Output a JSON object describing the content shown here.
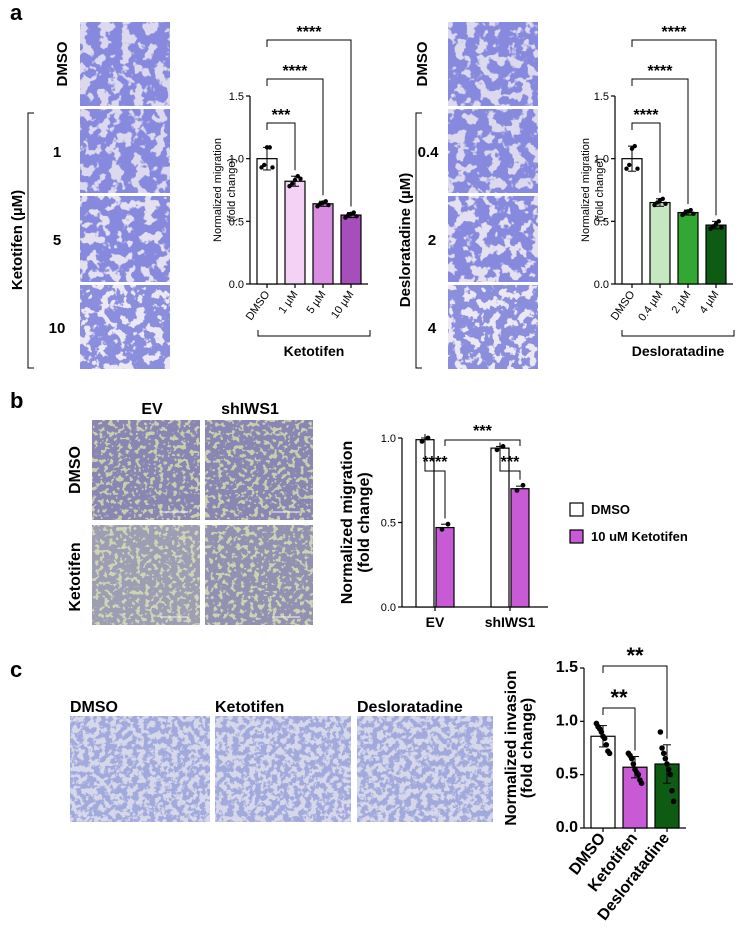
{
  "panels": {
    "a": {
      "label": "a",
      "left": {
        "row_labels": [
          "DMSO",
          "1",
          "5",
          "10"
        ],
        "group_label": "Ketotifen (µM)",
        "image_color": "#4a4fc0"
      },
      "right": {
        "row_labels": [
          "DMSO",
          "0.4",
          "2",
          "4"
        ],
        "group_label": "Desloratadine (µM)",
        "image_color": "#4a4fc0"
      }
    },
    "b": {
      "label": "b",
      "col_labels": [
        "EV",
        "shIWS1"
      ],
      "row_labels": [
        "DMSO",
        "Ketotifen"
      ],
      "legend": [
        {
          "label": "DMSO",
          "color": "#ffffff"
        },
        {
          "label": "10 uM Ketotifen",
          "color": "#c85ad6"
        }
      ]
    },
    "c": {
      "label": "c",
      "image_labels": [
        "DMSO",
        "Ketotifen",
        "Desloratadine"
      ]
    }
  },
  "chart_data": [
    {
      "id": "a-ketotifen",
      "type": "bar",
      "categories": [
        "DMSO",
        "1 µM",
        "5 µM",
        "10 µM"
      ],
      "values": [
        1.0,
        0.82,
        0.64,
        0.55
      ],
      "errors": [
        0.09,
        0.04,
        0.02,
        0.02
      ],
      "points": [
        [
          0.93,
          0.95,
          1.09,
          1.09,
          0.93
        ],
        [
          0.78,
          0.8,
          0.83,
          0.86,
          0.84
        ],
        [
          0.62,
          0.64,
          0.65,
          0.66,
          0.63
        ],
        [
          0.53,
          0.55,
          0.56,
          0.57,
          0.54
        ]
      ],
      "colors": [
        "#ffffff",
        "#f4d2f6",
        "#d98ee2",
        "#a64fbc"
      ],
      "ylabel": "Normalized migration (fold change)",
      "ylim": [
        0,
        1.5
      ],
      "yticks": [
        0.0,
        0.5,
        1.0,
        1.5
      ],
      "group_label": "Ketotifen",
      "significance": [
        {
          "from": 0,
          "to": 1,
          "label": "***"
        },
        {
          "from": 0,
          "to": 2,
          "label": "****"
        },
        {
          "from": 0,
          "to": 3,
          "label": "****"
        }
      ]
    },
    {
      "id": "a-desloratadine",
      "type": "bar",
      "categories": [
        "DMSO",
        "0.4 µM",
        "2 µM",
        "4 µM"
      ],
      "values": [
        1.0,
        0.65,
        0.57,
        0.47
      ],
      "errors": [
        0.1,
        0.03,
        0.02,
        0.03
      ],
      "points": [
        [
          0.92,
          0.95,
          1.08,
          1.1,
          0.92
        ],
        [
          0.63,
          0.65,
          0.67,
          0.68,
          0.64
        ],
        [
          0.55,
          0.57,
          0.58,
          0.59,
          0.56
        ],
        [
          0.44,
          0.46,
          0.48,
          0.5,
          0.45
        ]
      ],
      "colors": [
        "#ffffff",
        "#c6e8c0",
        "#32a832",
        "#0e5c14"
      ],
      "ylabel": "Normalized migration (fold change)",
      "ylim": [
        0,
        1.5
      ],
      "yticks": [
        0.0,
        0.5,
        1.0,
        1.5
      ],
      "group_label": "Desloratadine",
      "significance": [
        {
          "from": 0,
          "to": 1,
          "label": "****"
        },
        {
          "from": 0,
          "to": 2,
          "label": "****"
        },
        {
          "from": 0,
          "to": 3,
          "label": "****"
        }
      ]
    },
    {
      "id": "b",
      "type": "bar",
      "categories": [
        "EV",
        "shIWS1"
      ],
      "series": [
        {
          "name": "DMSO",
          "values": [
            0.99,
            0.94
          ],
          "errors": [
            0.01,
            0.01
          ],
          "points": [
            [
              0.98,
              1.0
            ],
            [
              0.93,
              0.95
            ]
          ],
          "color": "#ffffff"
        },
        {
          "name": "10 uM Ketotifen",
          "values": [
            0.47,
            0.7
          ],
          "errors": [
            0.02,
            0.015
          ],
          "points": [
            [
              0.46,
              0.49
            ],
            [
              0.69,
              0.72
            ]
          ],
          "color": "#c85ad6"
        }
      ],
      "ylabel": "Normalized migration (fold change)",
      "ylim": [
        0,
        1.0
      ],
      "yticks": [
        0.0,
        0.5,
        1.0
      ],
      "significance": [
        {
          "label": "****",
          "note": "EV DMSO vs EV Ketotifen"
        },
        {
          "label": "***",
          "note": "shIWS1 DMSO vs shIWS1 Ketotifen"
        },
        {
          "label": "***",
          "note": "EV Ketotifen vs shIWS1 Ketotifen"
        }
      ],
      "legend_position": "right"
    },
    {
      "id": "c",
      "type": "bar",
      "categories": [
        "DMSO",
        "Ketotifen",
        "Desloratadine"
      ],
      "values": [
        0.86,
        0.57,
        0.6
      ],
      "errors": [
        0.1,
        0.1,
        0.18
      ],
      "points": [
        [
          0.98,
          0.95,
          0.93,
          0.9,
          0.86,
          0.84,
          0.78,
          0.72,
          0.7
        ],
        [
          0.7,
          0.68,
          0.65,
          0.6,
          0.55,
          0.52,
          0.5,
          0.45,
          0.42
        ],
        [
          0.9,
          0.75,
          0.7,
          0.65,
          0.6,
          0.55,
          0.5,
          0.35,
          0.25
        ]
      ],
      "colors": [
        "#ffffff",
        "#c85ad6",
        "#0e5c14"
      ],
      "ylabel": "Normalized invasion (fold change)",
      "ylim": [
        0,
        1.5
      ],
      "yticks": [
        0.0,
        0.5,
        1.0,
        1.5
      ],
      "significance": [
        {
          "from": 0,
          "to": 1,
          "label": "**"
        },
        {
          "from": 0,
          "to": 2,
          "label": "**"
        }
      ]
    }
  ]
}
